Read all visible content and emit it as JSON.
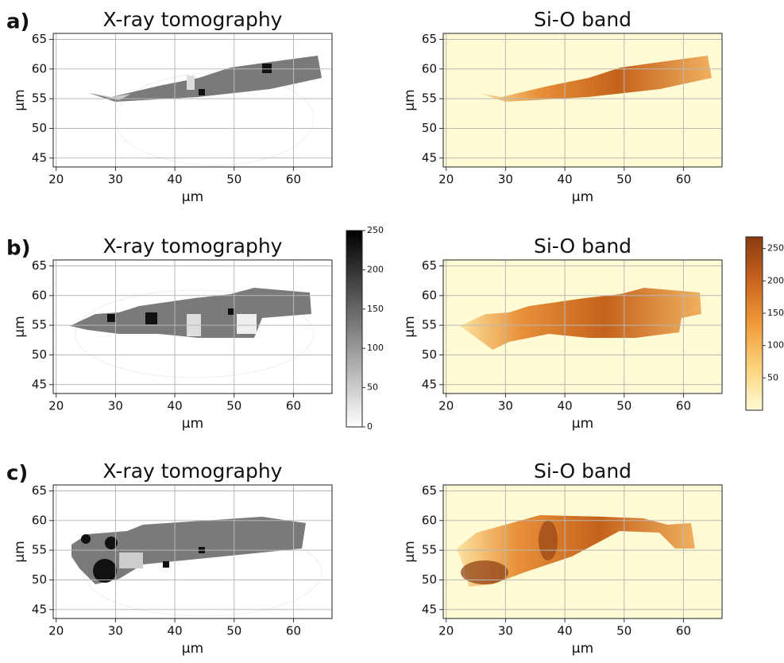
{
  "chart_data": [
    {
      "type": "image",
      "panel_label": "a)",
      "title": "X-ray tomography",
      "xlabel": "µm",
      "ylabel": "µm",
      "xlim": [
        19.5,
        66.5
      ],
      "ylim": [
        43.5,
        66
      ],
      "xticks": [
        20,
        30,
        40,
        50,
        60
      ],
      "yticks": [
        45,
        50,
        55,
        60,
        65
      ],
      "grid": true,
      "background": "#ffffff"
    },
    {
      "type": "image",
      "title": "Si-O band",
      "xlabel": "µm",
      "ylabel": "µm",
      "xlim": [
        19.5,
        66.5
      ],
      "ylim": [
        43.5,
        66
      ],
      "xticks": [
        20,
        30,
        40,
        50,
        60
      ],
      "yticks": [
        45,
        50,
        55,
        60,
        65
      ],
      "grid": true,
      "background": "#fffbd5"
    },
    {
      "type": "image",
      "panel_label": "b)",
      "title": "X-ray tomography",
      "xlabel": "µm",
      "ylabel": "µm",
      "xlim": [
        19.5,
        66.5
      ],
      "ylim": [
        43.5,
        66
      ],
      "xticks": [
        20,
        30,
        40,
        50,
        60
      ],
      "yticks": [
        45,
        50,
        55,
        60,
        65
      ],
      "grid": true,
      "background": "#ffffff"
    },
    {
      "type": "image",
      "title": "Si-O band",
      "xlabel": "µm",
      "ylabel": "µm",
      "xlim": [
        19.5,
        66.5
      ],
      "ylim": [
        43.5,
        66
      ],
      "xticks": [
        20,
        30,
        40,
        50,
        60
      ],
      "yticks": [
        45,
        50,
        55,
        60,
        65
      ],
      "grid": true,
      "background": "#fffbd5"
    },
    {
      "type": "image",
      "panel_label": "c)",
      "title": "X-ray tomography",
      "xlabel": "µm",
      "ylabel": "µm",
      "xlim": [
        19.5,
        66.5
      ],
      "ylim": [
        43.5,
        66
      ],
      "xticks": [
        20,
        30,
        40,
        50,
        60
      ],
      "yticks": [
        45,
        50,
        55,
        60,
        65
      ],
      "grid": true,
      "background": "#ffffff"
    },
    {
      "type": "image",
      "title": "Si-O band",
      "xlabel": "µm",
      "ylabel": "µm",
      "xlim": [
        19.5,
        66.5
      ],
      "ylim": [
        43.5,
        66
      ],
      "xticks": [
        20,
        30,
        40,
        50,
        60
      ],
      "yticks": [
        45,
        50,
        55,
        60,
        65
      ],
      "grid": true,
      "background": "#fffbd5"
    },
    {
      "type": "colorbar",
      "lim": [
        0,
        250
      ],
      "ticks": [
        0,
        50,
        100,
        150,
        200,
        250
      ],
      "colors": [
        "#ffffff",
        "#000000"
      ]
    },
    {
      "type": "colorbar",
      "lim": [
        0,
        268
      ],
      "ticks": [
        50,
        100,
        150,
        200,
        250
      ],
      "colors": [
        "#fffbd5",
        "#fcd27a",
        "#f09a3a",
        "#c8641e",
        "#8a3b10"
      ]
    }
  ]
}
